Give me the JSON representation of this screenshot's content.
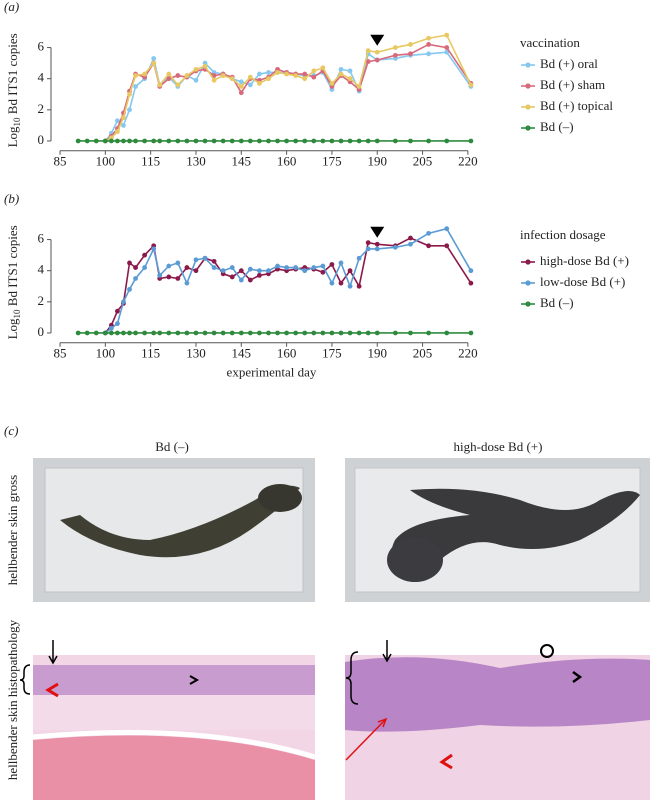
{
  "chart_data": [
    {
      "type": "line",
      "panel": "(a)",
      "ylabel": {
        "main": "Log",
        "sub": "10",
        "rest": " Bd ITS1 copies"
      },
      "x": [
        91,
        94,
        97,
        100,
        102,
        104,
        106,
        108,
        110,
        113,
        116,
        118,
        121,
        124,
        127,
        130,
        133,
        136,
        139,
        142,
        145,
        148,
        151,
        154,
        157,
        160,
        163,
        166,
        169,
        172,
        175,
        178,
        181,
        184,
        187,
        190,
        196,
        201,
        207,
        213,
        221
      ],
      "xlim": [
        84,
        226
      ],
      "xticks": [
        85,
        100,
        115,
        130,
        145,
        160,
        175,
        190,
        205,
        220
      ],
      "ylim": [
        -0.5,
        7
      ],
      "yticks": [
        0,
        2,
        4,
        6
      ],
      "legend_title": "vaccination",
      "legend": "right",
      "marker": {
        "x": 190,
        "y": 6.5
      },
      "series": [
        {
          "name": "Bd (+) oral",
          "color": "#86c8ef",
          "values": [
            null,
            null,
            null,
            0,
            0.5,
            1.3,
            1.0,
            2.0,
            3.5,
            4.0,
            5.3,
            3.6,
            4.1,
            3.5,
            4.2,
            3.9,
            5.0,
            4.4,
            4.3,
            4.0,
            3.8,
            3.6,
            4.3,
            4.4,
            4.4,
            4.4,
            4.3,
            4.2,
            4.2,
            4.4,
            3.3,
            4.6,
            4.5,
            3.2,
            5.6,
            5.2,
            5.3,
            5.5,
            5.6,
            5.7,
            3.5
          ]
        },
        {
          "name": "Bd (+) sham",
          "color": "#d8697a",
          "values": [
            null,
            null,
            null,
            0,
            0.3,
            0.8,
            1.8,
            3.2,
            4.3,
            4.1,
            5.0,
            3.5,
            4.0,
            4.2,
            4.1,
            4.5,
            4.6,
            4.2,
            4.3,
            4.1,
            3.1,
            4.0,
            3.9,
            4.1,
            4.6,
            4.4,
            4.3,
            4.3,
            4.1,
            4.5,
            3.5,
            4.2,
            3.8,
            3.3,
            5.1,
            5.2,
            5.5,
            5.6,
            6.2,
            6.0,
            3.7
          ]
        },
        {
          "name": "Bd (+) topical",
          "color": "#e8c862",
          "values": [
            null,
            null,
            null,
            0,
            0.2,
            0.6,
            1.5,
            3.0,
            4.2,
            4.3,
            5.0,
            3.6,
            4.3,
            3.6,
            4.2,
            4.6,
            4.8,
            3.9,
            4.2,
            4.0,
            3.5,
            4.1,
            3.7,
            4.0,
            4.4,
            4.3,
            4.2,
            4.0,
            4.5,
            4.7,
            3.7,
            4.3,
            4.0,
            3.5,
            5.8,
            5.7,
            6.0,
            6.2,
            6.6,
            6.8,
            3.6
          ]
        },
        {
          "name": "Bd (–)",
          "color": "#2e8b3e",
          "values": [
            0,
            0,
            0,
            0,
            0,
            0,
            0,
            0,
            0,
            0,
            0,
            0,
            0,
            0,
            0,
            0,
            0,
            0,
            0,
            0,
            0,
            0,
            0,
            0,
            0,
            0,
            0,
            0,
            0,
            0,
            0,
            0,
            0,
            0,
            0,
            0,
            0,
            0,
            0,
            0,
            0
          ]
        }
      ]
    },
    {
      "type": "line",
      "panel": "(b)",
      "ylabel": {
        "main": "Log",
        "sub": "10",
        "rest": " Bd ITS1 copies"
      },
      "xlabel": "experimental day",
      "x": [
        91,
        94,
        97,
        100,
        102,
        104,
        106,
        108,
        110,
        113,
        116,
        118,
        121,
        124,
        127,
        130,
        133,
        136,
        139,
        142,
        145,
        148,
        151,
        154,
        157,
        160,
        163,
        166,
        169,
        172,
        175,
        178,
        181,
        184,
        187,
        190,
        196,
        201,
        207,
        213,
        221
      ],
      "xlim": [
        84,
        226
      ],
      "xticks": [
        85,
        100,
        115,
        130,
        145,
        160,
        175,
        190,
        205,
        220
      ],
      "ylim": [
        -0.5,
        7
      ],
      "yticks": [
        0,
        2,
        4,
        6
      ],
      "legend_title": "infection dosage",
      "legend": "right",
      "marker": {
        "x": 190,
        "y": 6.5
      },
      "series": [
        {
          "name": "high-dose Bd (+)",
          "color": "#8b1a4a",
          "values": [
            null,
            null,
            null,
            0,
            0.5,
            1.4,
            1.9,
            4.5,
            4.2,
            5.0,
            5.6,
            3.5,
            3.6,
            3.5,
            4.2,
            4.0,
            4.8,
            4.6,
            3.8,
            3.6,
            4.0,
            3.4,
            3.7,
            3.8,
            4.1,
            4.0,
            4.1,
            4.2,
            4.1,
            3.9,
            4.4,
            3.2,
            4.0,
            3.0,
            5.8,
            5.7,
            5.6,
            6.1,
            5.6,
            5.6,
            3.2
          ]
        },
        {
          "name": "low-dose Bd (+)",
          "color": "#5b9bd5",
          "values": [
            null,
            null,
            null,
            0,
            0.3,
            0.6,
            2.0,
            2.8,
            3.5,
            4.2,
            5.4,
            3.7,
            4.3,
            4.5,
            3.2,
            4.7,
            4.8,
            4.2,
            4.0,
            4.2,
            3.4,
            4.1,
            4.0,
            4.0,
            4.3,
            4.2,
            4.2,
            4.0,
            4.2,
            4.3,
            3.2,
            4.5,
            3.0,
            4.8,
            5.4,
            5.4,
            5.5,
            5.7,
            6.4,
            6.7,
            4.0
          ]
        },
        {
          "name": "Bd (–)",
          "color": "#2e8b3e",
          "values": [
            0,
            0,
            0,
            0,
            0,
            0,
            0,
            0,
            0,
            0,
            0,
            0,
            0,
            0,
            0,
            0,
            0,
            0,
            0,
            0,
            0,
            0,
            0,
            0,
            0,
            0,
            0,
            0,
            0,
            0,
            0,
            0,
            0,
            0,
            0,
            0,
            0,
            0,
            0,
            0,
            0
          ]
        }
      ]
    }
  ],
  "panel_c": {
    "panel": "(c)",
    "left_title": "Bd (–)",
    "right_title": "high-dose Bd (+)",
    "row_gross": "hellbender skin gross",
    "row_histo": "hellbender skin histopathology"
  }
}
